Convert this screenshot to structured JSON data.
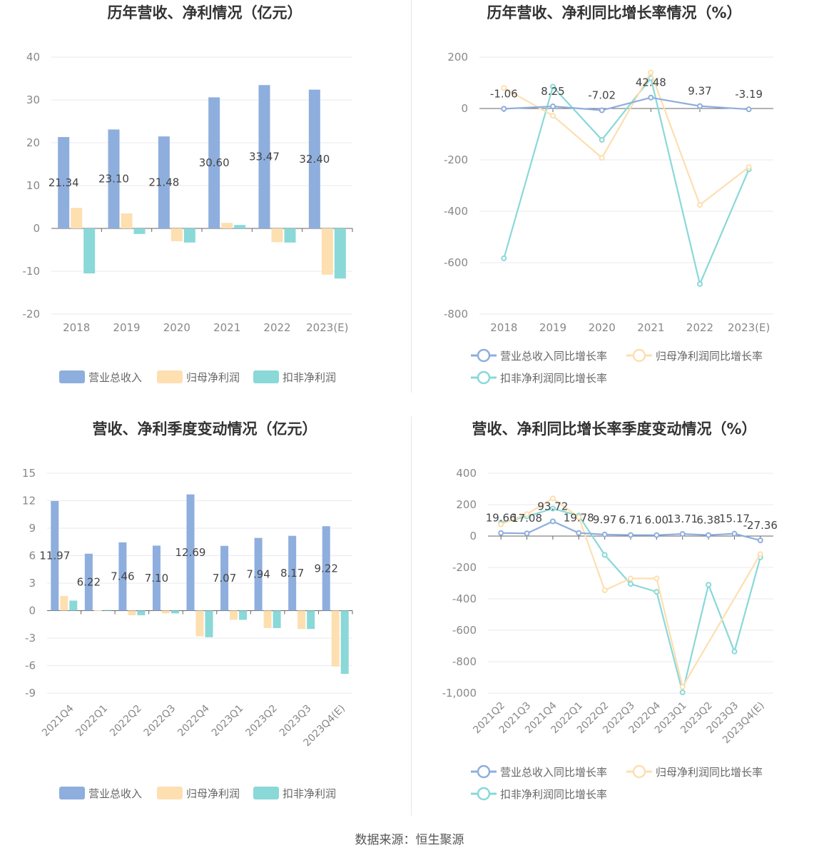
{
  "colors": {
    "revenue": "#8eaedd",
    "net_profit": "#fddfb0",
    "deducted_profit": "#8ad8d8",
    "revenue_line": "#8eaedd",
    "net_line": "#fddfb0",
    "deducted_line": "#8ad8d8"
  },
  "source": "数据来源：恒生聚源",
  "chart_data": [
    {
      "type": "bar",
      "title": "历年营收、净利情况（亿元）",
      "categories": [
        "2018",
        "2019",
        "2020",
        "2021",
        "2022",
        "2023(E)"
      ],
      "ylim": [
        -20,
        40
      ],
      "yticks": [
        "-20",
        "-10",
        "0",
        "10",
        "20",
        "30",
        "40"
      ],
      "series": [
        {
          "name": "营业总收入",
          "values": [
            21.34,
            23.1,
            21.48,
            30.6,
            33.47,
            32.4
          ]
        },
        {
          "name": "归母净利润",
          "values": [
            4.8,
            3.5,
            -3.0,
            1.3,
            -3.2,
            -10.8
          ]
        },
        {
          "name": "扣非净利润",
          "values": [
            -10.5,
            -1.3,
            -3.3,
            0.8,
            -3.3,
            -11.7
          ]
        }
      ],
      "data_labels": [
        "21.34",
        "23.10",
        "21.48",
        "30.60",
        "33.47",
        "32.40"
      ],
      "grid": true,
      "legend": "bottom"
    },
    {
      "type": "line",
      "title": "历年营收、净利同比增长率情况（%）",
      "categories": [
        "2018",
        "2019",
        "2020",
        "2021",
        "2022",
        "2023(E)"
      ],
      "ylim": [
        -800,
        200
      ],
      "yticks": [
        "-800",
        "-600",
        "-400",
        "-200",
        "0",
        "200"
      ],
      "series": [
        {
          "name": "营业总收入同比增长率",
          "values": [
            -1.06,
            8.25,
            -7.02,
            42.48,
            9.37,
            -3.19
          ]
        },
        {
          "name": "归母净利润同比增长率",
          "values": [
            80,
            -28,
            -192,
            140,
            -375,
            -228
          ]
        },
        {
          "name": "扣非净利润同比增长率",
          "values": [
            -583,
            85,
            -122,
            118,
            -683,
            -237
          ]
        }
      ],
      "data_labels": [
        "-1.06",
        "8.25",
        "-7.02",
        "42.48",
        "9.37",
        "-3.19"
      ],
      "grid": true,
      "legend": "bottom"
    },
    {
      "type": "bar",
      "title": "营收、净利季度变动情况（亿元）",
      "categories": [
        "2021Q4",
        "2022Q1",
        "2022Q2",
        "2022Q3",
        "2022Q4",
        "2023Q1",
        "2023Q2",
        "2023Q3",
        "2023Q4(E)"
      ],
      "ylim": [
        -9,
        15
      ],
      "yticks": [
        "-9",
        "-6",
        "-3",
        "0",
        "3",
        "6",
        "9",
        "12",
        "15"
      ],
      "series": [
        {
          "name": "营业总收入",
          "values": [
            11.97,
            6.22,
            7.46,
            7.1,
            12.69,
            7.07,
            7.94,
            8.17,
            9.22
          ]
        },
        {
          "name": "归母净利润",
          "values": [
            1.6,
            0.05,
            -0.5,
            -0.3,
            -2.8,
            -1.0,
            -1.9,
            -2.0,
            -6.1
          ]
        },
        {
          "name": "扣非净利润",
          "values": [
            1.1,
            0.08,
            -0.5,
            -0.3,
            -2.9,
            -1.0,
            -1.9,
            -2.0,
            -6.9
          ]
        }
      ],
      "data_labels": [
        "11.97",
        "6.22",
        "7.46",
        "7.10",
        "12.69",
        "7.07",
        "7.94",
        "8.17",
        "9.22"
      ],
      "grid": true,
      "legend": "bottom"
    },
    {
      "type": "line",
      "title": "营收、净利同比增长率季度变动情况（%）",
      "categories": [
        "2021Q2",
        "2021Q3",
        "2021Q4",
        "2022Q1",
        "2022Q2",
        "2022Q3",
        "2022Q4",
        "2023Q1",
        "2023Q2",
        "2023Q3",
        "2023Q4(E)"
      ],
      "ylim": [
        -1000,
        400
      ],
      "yticks": [
        "-1,000",
        "-800",
        "-600",
        "-400",
        "-200",
        "0",
        "200",
        "400"
      ],
      "series": [
        {
          "name": "营业总收入同比增长率",
          "values": [
            19.66,
            17.08,
            93.72,
            19.78,
            9.97,
            6.71,
            6.0,
            13.71,
            6.38,
            15.17,
            -27.36
          ]
        },
        {
          "name": "归母净利润同比增长率",
          "values": [
            75,
            140,
            240,
            120,
            -345,
            -270,
            -270,
            -960,
            null,
            null,
            -115
          ]
        },
        {
          "name": "扣非净利润同比增长率",
          "values": [
            85,
            125,
            175,
            130,
            -120,
            -305,
            -355,
            -995,
            -310,
            -735,
            -135
          ]
        }
      ],
      "data_labels": [
        "19.66",
        "17.08",
        "93.72",
        "19.78",
        "9.97",
        "6.71",
        "6.00",
        "13.71",
        "6.38",
        "15.17",
        "-27.36"
      ],
      "grid": true,
      "legend": "bottom"
    }
  ]
}
